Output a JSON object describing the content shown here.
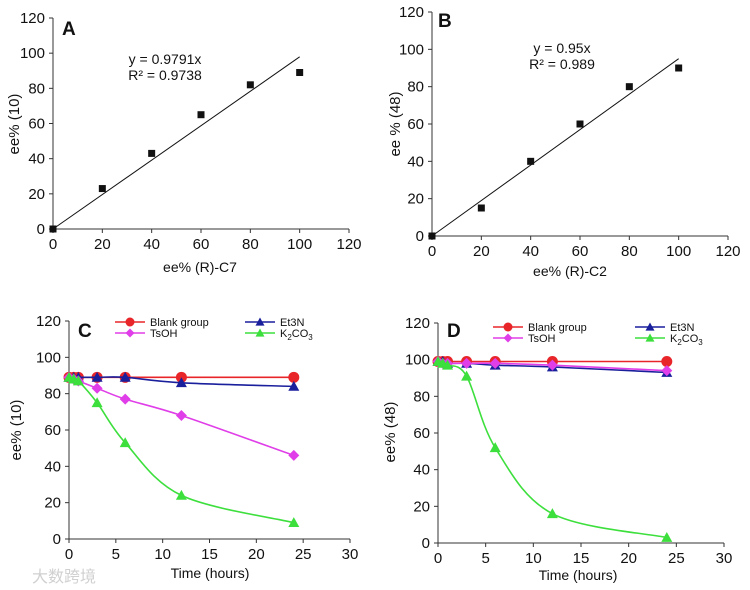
{
  "watermark": "大数跨境",
  "chart_data": [
    {
      "panel": "A",
      "type": "scatter",
      "xlabel": "ee% (R)-C7",
      "ylabel": "ee% (10)",
      "xlim": [
        0,
        120
      ],
      "ylim": [
        0,
        120
      ],
      "xticks": [
        0,
        20,
        40,
        60,
        80,
        100,
        120
      ],
      "yticks": [
        0,
        20,
        40,
        60,
        80,
        100,
        120
      ],
      "points": {
        "x": [
          0,
          20,
          40,
          60,
          80,
          100
        ],
        "y": [
          0,
          23,
          43,
          65,
          82,
          89
        ]
      },
      "fit": {
        "slope": 0.9791,
        "x_range": [
          0,
          100
        ],
        "equation": "y = 0.9791x",
        "r2": "R² = 0.9738"
      }
    },
    {
      "panel": "B",
      "type": "scatter",
      "xlabel": "ee% (R)-C2",
      "ylabel": "ee % (48)",
      "xlim": [
        0,
        120
      ],
      "ylim": [
        0,
        120
      ],
      "xticks": [
        0,
        20,
        40,
        60,
        80,
        100,
        120
      ],
      "yticks": [
        0,
        20,
        40,
        60,
        80,
        100,
        120
      ],
      "points": {
        "x": [
          0,
          20,
          40,
          60,
          80,
          100
        ],
        "y": [
          0,
          15,
          40,
          60,
          80,
          90
        ]
      },
      "fit": {
        "slope": 0.95,
        "x_range": [
          0,
          100
        ],
        "equation": "y = 0.95x",
        "r2": "R² = 0.989"
      }
    },
    {
      "panel": "C",
      "type": "line",
      "xlabel": "Time (hours)",
      "ylabel": "ee% (10)",
      "xlim": [
        0,
        30
      ],
      "ylim": [
        0,
        120
      ],
      "xticks": [
        0,
        5,
        10,
        15,
        20,
        25,
        30
      ],
      "yticks": [
        0,
        20,
        40,
        60,
        80,
        100,
        120
      ],
      "x": [
        0,
        0.5,
        1,
        3,
        6,
        12,
        24
      ],
      "series": [
        {
          "name": "Blank group",
          "color": "#e8262a",
          "marker": "circle",
          "values": [
            89,
            89,
            89,
            89,
            89,
            89,
            89
          ]
        },
        {
          "name": "Et3N",
          "color": "#1a1f9c",
          "marker": "triangle",
          "values": [
            89,
            89,
            89,
            89,
            89,
            86,
            84
          ]
        },
        {
          "name": "TsOH",
          "color": "#e03ee8",
          "marker": "diamond",
          "values": [
            89,
            88,
            87,
            83,
            77,
            68,
            46
          ]
        },
        {
          "name": "K2CO3",
          "color": "#3ddf3d",
          "marker": "triangle",
          "values": [
            89,
            88,
            87,
            75,
            53,
            24,
            9
          ]
        }
      ]
    },
    {
      "panel": "D",
      "type": "line",
      "xlabel": "Time (hours)",
      "ylabel": "ee% (48)",
      "xlim": [
        0,
        30
      ],
      "ylim": [
        0,
        120
      ],
      "xticks": [
        0,
        5,
        10,
        15,
        20,
        25,
        30
      ],
      "yticks": [
        0,
        20,
        40,
        60,
        80,
        100,
        120
      ],
      "x": [
        0,
        0.5,
        1,
        3,
        6,
        12,
        24
      ],
      "series": [
        {
          "name": "Blank group",
          "color": "#e8262a",
          "marker": "circle",
          "values": [
            99,
            99,
            99,
            99,
            99,
            99,
            99
          ]
        },
        {
          "name": "Et3N",
          "color": "#1a1f9c",
          "marker": "triangle",
          "values": [
            99,
            99,
            98,
            98,
            97,
            96,
            93
          ]
        },
        {
          "name": "TsOH",
          "color": "#e03ee8",
          "marker": "diamond",
          "values": [
            99,
            98,
            98,
            98,
            98,
            97,
            94
          ]
        },
        {
          "name": "K2CO3",
          "color": "#3ddf3d",
          "marker": "triangle",
          "values": [
            99,
            98,
            97,
            91,
            52,
            16,
            3
          ]
        }
      ]
    }
  ]
}
